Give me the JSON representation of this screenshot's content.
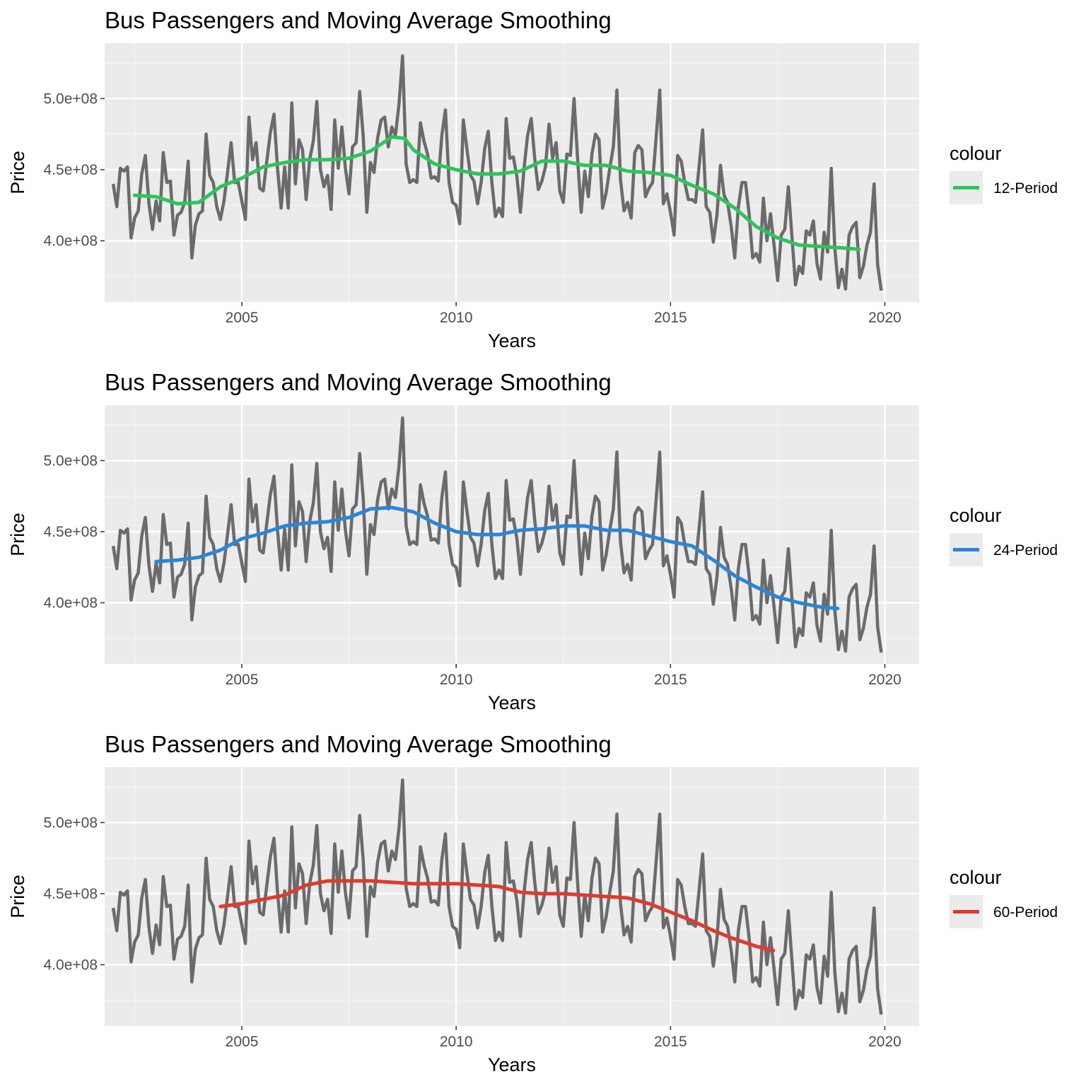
{
  "chart_data": [
    {
      "type": "line",
      "title": "Bus Passengers and Moving Average Smoothing",
      "xlabel": "Years",
      "ylabel": "Price",
      "xlim": [
        2001.8,
        2020.8
      ],
      "ylim": [
        357000000,
        539000000
      ],
      "x_ticks": [
        2005,
        2010,
        2015,
        2020
      ],
      "x_tick_labels": [
        "2005",
        "2010",
        "2015",
        "2020"
      ],
      "y_ticks": [
        400000000,
        450000000,
        500000000
      ],
      "y_tick_labels": [
        "4.0e+08",
        "4.5e+08",
        "5.0e+08"
      ],
      "grid": true,
      "legend_title": "colour",
      "legend_position": "right",
      "raw_series": {
        "name": "",
        "color": "#6b6b6b"
      },
      "smooth_series": {
        "name": "12-Period",
        "color": "#2ec45b",
        "x": [
          2002.5,
          2003.0,
          2003.5,
          2004.0,
          2004.5,
          2005.0,
          2005.5,
          2006.0,
          2006.5,
          2007.0,
          2007.5,
          2008.0,
          2008.5,
          2008.8,
          2009.0,
          2009.5,
          2010.0,
          2010.5,
          2011.0,
          2011.5,
          2012.0,
          2012.5,
          2013.0,
          2013.5,
          2014.0,
          2014.5,
          2015.0,
          2015.5,
          2016.0,
          2016.5,
          2017.0,
          2017.5,
          2018.0,
          2018.5,
          2019.0,
          2019.4
        ],
        "y": [
          432000000,
          431000000,
          426000000,
          427000000,
          438000000,
          444000000,
          452000000,
          455000000,
          457000000,
          457000000,
          458000000,
          463000000,
          473000000,
          472000000,
          464000000,
          454000000,
          450000000,
          447000000,
          447000000,
          449000000,
          456000000,
          456000000,
          453000000,
          453000000,
          449000000,
          448000000,
          446000000,
          439000000,
          433000000,
          423000000,
          410000000,
          402000000,
          397000000,
          396000000,
          395000000,
          394000000
        ]
      }
    },
    {
      "type": "line",
      "title": "Bus Passengers and Moving Average Smoothing",
      "xlabel": "Years",
      "ylabel": "Price",
      "xlim": [
        2001.8,
        2020.8
      ],
      "ylim": [
        357000000,
        539000000
      ],
      "x_ticks": [
        2005,
        2010,
        2015,
        2020
      ],
      "x_tick_labels": [
        "2005",
        "2010",
        "2015",
        "2020"
      ],
      "y_ticks": [
        400000000,
        450000000,
        500000000
      ],
      "y_tick_labels": [
        "4.0e+08",
        "4.5e+08",
        "5.0e+08"
      ],
      "grid": true,
      "legend_title": "colour",
      "legend_position": "right",
      "raw_series": {
        "name": "",
        "color": "#6b6b6b"
      },
      "smooth_series": {
        "name": "24-Period",
        "color": "#2a86d8",
        "x": [
          2003.0,
          2003.5,
          2004.0,
          2004.5,
          2005.0,
          2005.5,
          2006.0,
          2006.5,
          2007.0,
          2007.5,
          2008.0,
          2008.5,
          2009.0,
          2009.5,
          2010.0,
          2010.5,
          2011.0,
          2011.5,
          2012.0,
          2012.5,
          2013.0,
          2013.5,
          2014.0,
          2014.5,
          2015.0,
          2015.5,
          2016.0,
          2016.5,
          2017.0,
          2017.5,
          2018.0,
          2018.5,
          2018.9
        ],
        "y": [
          429000000,
          430000000,
          432000000,
          437000000,
          445000000,
          449000000,
          454000000,
          456000000,
          457000000,
          460000000,
          466000000,
          467000000,
          464000000,
          456000000,
          450000000,
          448000000,
          448000000,
          451000000,
          452000000,
          454000000,
          454000000,
          451000000,
          451000000,
          447000000,
          443000000,
          440000000,
          430000000,
          419000000,
          411000000,
          404000000,
          400000000,
          397000000,
          396000000
        ]
      }
    },
    {
      "type": "line",
      "title": "Bus Passengers and Moving Average Smoothing",
      "xlabel": "Years",
      "ylabel": "Price",
      "xlim": [
        2001.8,
        2020.8
      ],
      "ylim": [
        357000000,
        539000000
      ],
      "x_ticks": [
        2005,
        2010,
        2015,
        2020
      ],
      "x_tick_labels": [
        "2005",
        "2010",
        "2015",
        "2020"
      ],
      "y_ticks": [
        400000000,
        450000000,
        500000000
      ],
      "y_tick_labels": [
        "4.0e+08",
        "4.5e+08",
        "5.0e+08"
      ],
      "grid": true,
      "legend_title": "colour",
      "legend_position": "right",
      "raw_series": {
        "name": "",
        "color": "#6b6b6b"
      },
      "smooth_series": {
        "name": "60-Period",
        "color": "#df3a2e",
        "x": [
          2004.5,
          2005.0,
          2005.5,
          2006.0,
          2006.5,
          2007.0,
          2007.5,
          2008.0,
          2008.5,
          2009.0,
          2009.5,
          2010.0,
          2010.5,
          2011.0,
          2011.5,
          2012.0,
          2012.5,
          2013.0,
          2013.5,
          2014.0,
          2014.5,
          2015.0,
          2015.5,
          2016.0,
          2016.5,
          2017.0,
          2017.4
        ],
        "y": [
          441000000,
          443000000,
          446000000,
          449000000,
          456000000,
          459000000,
          459000000,
          459000000,
          458000000,
          457000000,
          457000000,
          457000000,
          456000000,
          455000000,
          451000000,
          450000000,
          450000000,
          449000000,
          448000000,
          447000000,
          443000000,
          437000000,
          431000000,
          424000000,
          418000000,
          413000000,
          410000000
        ]
      }
    }
  ],
  "raw_data": {
    "start": 2002.0,
    "step": 0.08333,
    "values": [
      440000000,
      424000000,
      451000000,
      449000000,
      452000000,
      402000000,
      416000000,
      421000000,
      447000000,
      460000000,
      426000000,
      408000000,
      428000000,
      414000000,
      462000000,
      441000000,
      442000000,
      404000000,
      418000000,
      420000000,
      427000000,
      456000000,
      388000000,
      411000000,
      419000000,
      421000000,
      475000000,
      446000000,
      441000000,
      424000000,
      415000000,
      428000000,
      448000000,
      469000000,
      441000000,
      441000000,
      428000000,
      415000000,
      487000000,
      457000000,
      469000000,
      437000000,
      435000000,
      456000000,
      476000000,
      489000000,
      451000000,
      423000000,
      452000000,
      423000000,
      497000000,
      440000000,
      471000000,
      464000000,
      429000000,
      457000000,
      470000000,
      498000000,
      450000000,
      438000000,
      446000000,
      422000000,
      485000000,
      451000000,
      480000000,
      451000000,
      433000000,
      466000000,
      469000000,
      505000000,
      473000000,
      420000000,
      455000000,
      448000000,
      472000000,
      485000000,
      487000000,
      466000000,
      480000000,
      474000000,
      496000000,
      530000000,
      454000000,
      441000000,
      443000000,
      441000000,
      483000000,
      470000000,
      461000000,
      444000000,
      445000000,
      442000000,
      474000000,
      492000000,
      441000000,
      427000000,
      425000000,
      412000000,
      485000000,
      465000000,
      446000000,
      442000000,
      426000000,
      441000000,
      465000000,
      477000000,
      441000000,
      417000000,
      423000000,
      417000000,
      486000000,
      458000000,
      459000000,
      445000000,
      420000000,
      451000000,
      474000000,
      486000000,
      458000000,
      436000000,
      442000000,
      452000000,
      482000000,
      458000000,
      469000000,
      435000000,
      427000000,
      461000000,
      460000000,
      500000000,
      458000000,
      420000000,
      449000000,
      431000000,
      461000000,
      475000000,
      471000000,
      423000000,
      434000000,
      451000000,
      466000000,
      506000000,
      443000000,
      421000000,
      427000000,
      416000000,
      462000000,
      467000000,
      464000000,
      431000000,
      437000000,
      441000000,
      473000000,
      506000000,
      426000000,
      433000000,
      420000000,
      404000000,
      460000000,
      456000000,
      441000000,
      429000000,
      429000000,
      427000000,
      452000000,
      478000000,
      424000000,
      420000000,
      399000000,
      418000000,
      453000000,
      432000000,
      427000000,
      410000000,
      388000000,
      424000000,
      441000000,
      441000000,
      419000000,
      388000000,
      391000000,
      385000000,
      430000000,
      400000000,
      419000000,
      397000000,
      372000000,
      404000000,
      408000000,
      438000000,
      403000000,
      369000000,
      382000000,
      377000000,
      407000000,
      404000000,
      414000000,
      384000000,
      373000000,
      406000000,
      392000000,
      451000000,
      395000000,
      367000000,
      380000000,
      366000000,
      404000000,
      410000000,
      413000000,
      374000000,
      382000000,
      397000000,
      406000000,
      440000000,
      383000000,
      365000000
    ]
  }
}
